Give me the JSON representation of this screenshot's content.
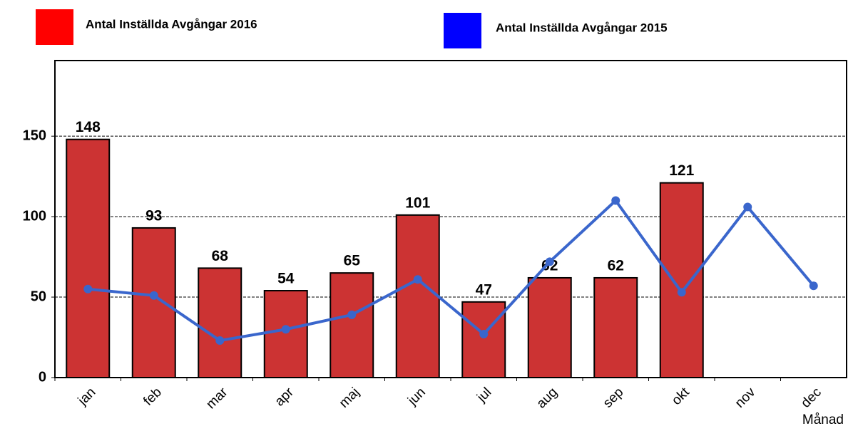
{
  "chart_data": {
    "type": "bar",
    "x_label": "Månad",
    "categories": [
      "jan",
      "feb",
      "mar",
      "apr",
      "maj",
      "jun",
      "jul",
      "aug",
      "sep",
      "okt",
      "nov",
      "dec"
    ],
    "series": [
      {
        "name": "Antal Inställda Avgångar 2016",
        "type": "bar",
        "color": "#cc3333",
        "legend_color": "#ff0000",
        "values": [
          148,
          93,
          68,
          54,
          65,
          101,
          47,
          62,
          62,
          121,
          null,
          null
        ]
      },
      {
        "name": "Antal Inställda Avgångar 2015",
        "type": "line",
        "color": "#3a66cc",
        "legend_color": "#0000ff",
        "values": [
          55,
          51,
          23,
          30,
          39,
          61,
          27,
          72,
          110,
          53,
          106,
          57
        ]
      }
    ],
    "ylim": [
      0,
      197
    ],
    "yticks": [
      0,
      50,
      100,
      150
    ],
    "grid": true
  }
}
